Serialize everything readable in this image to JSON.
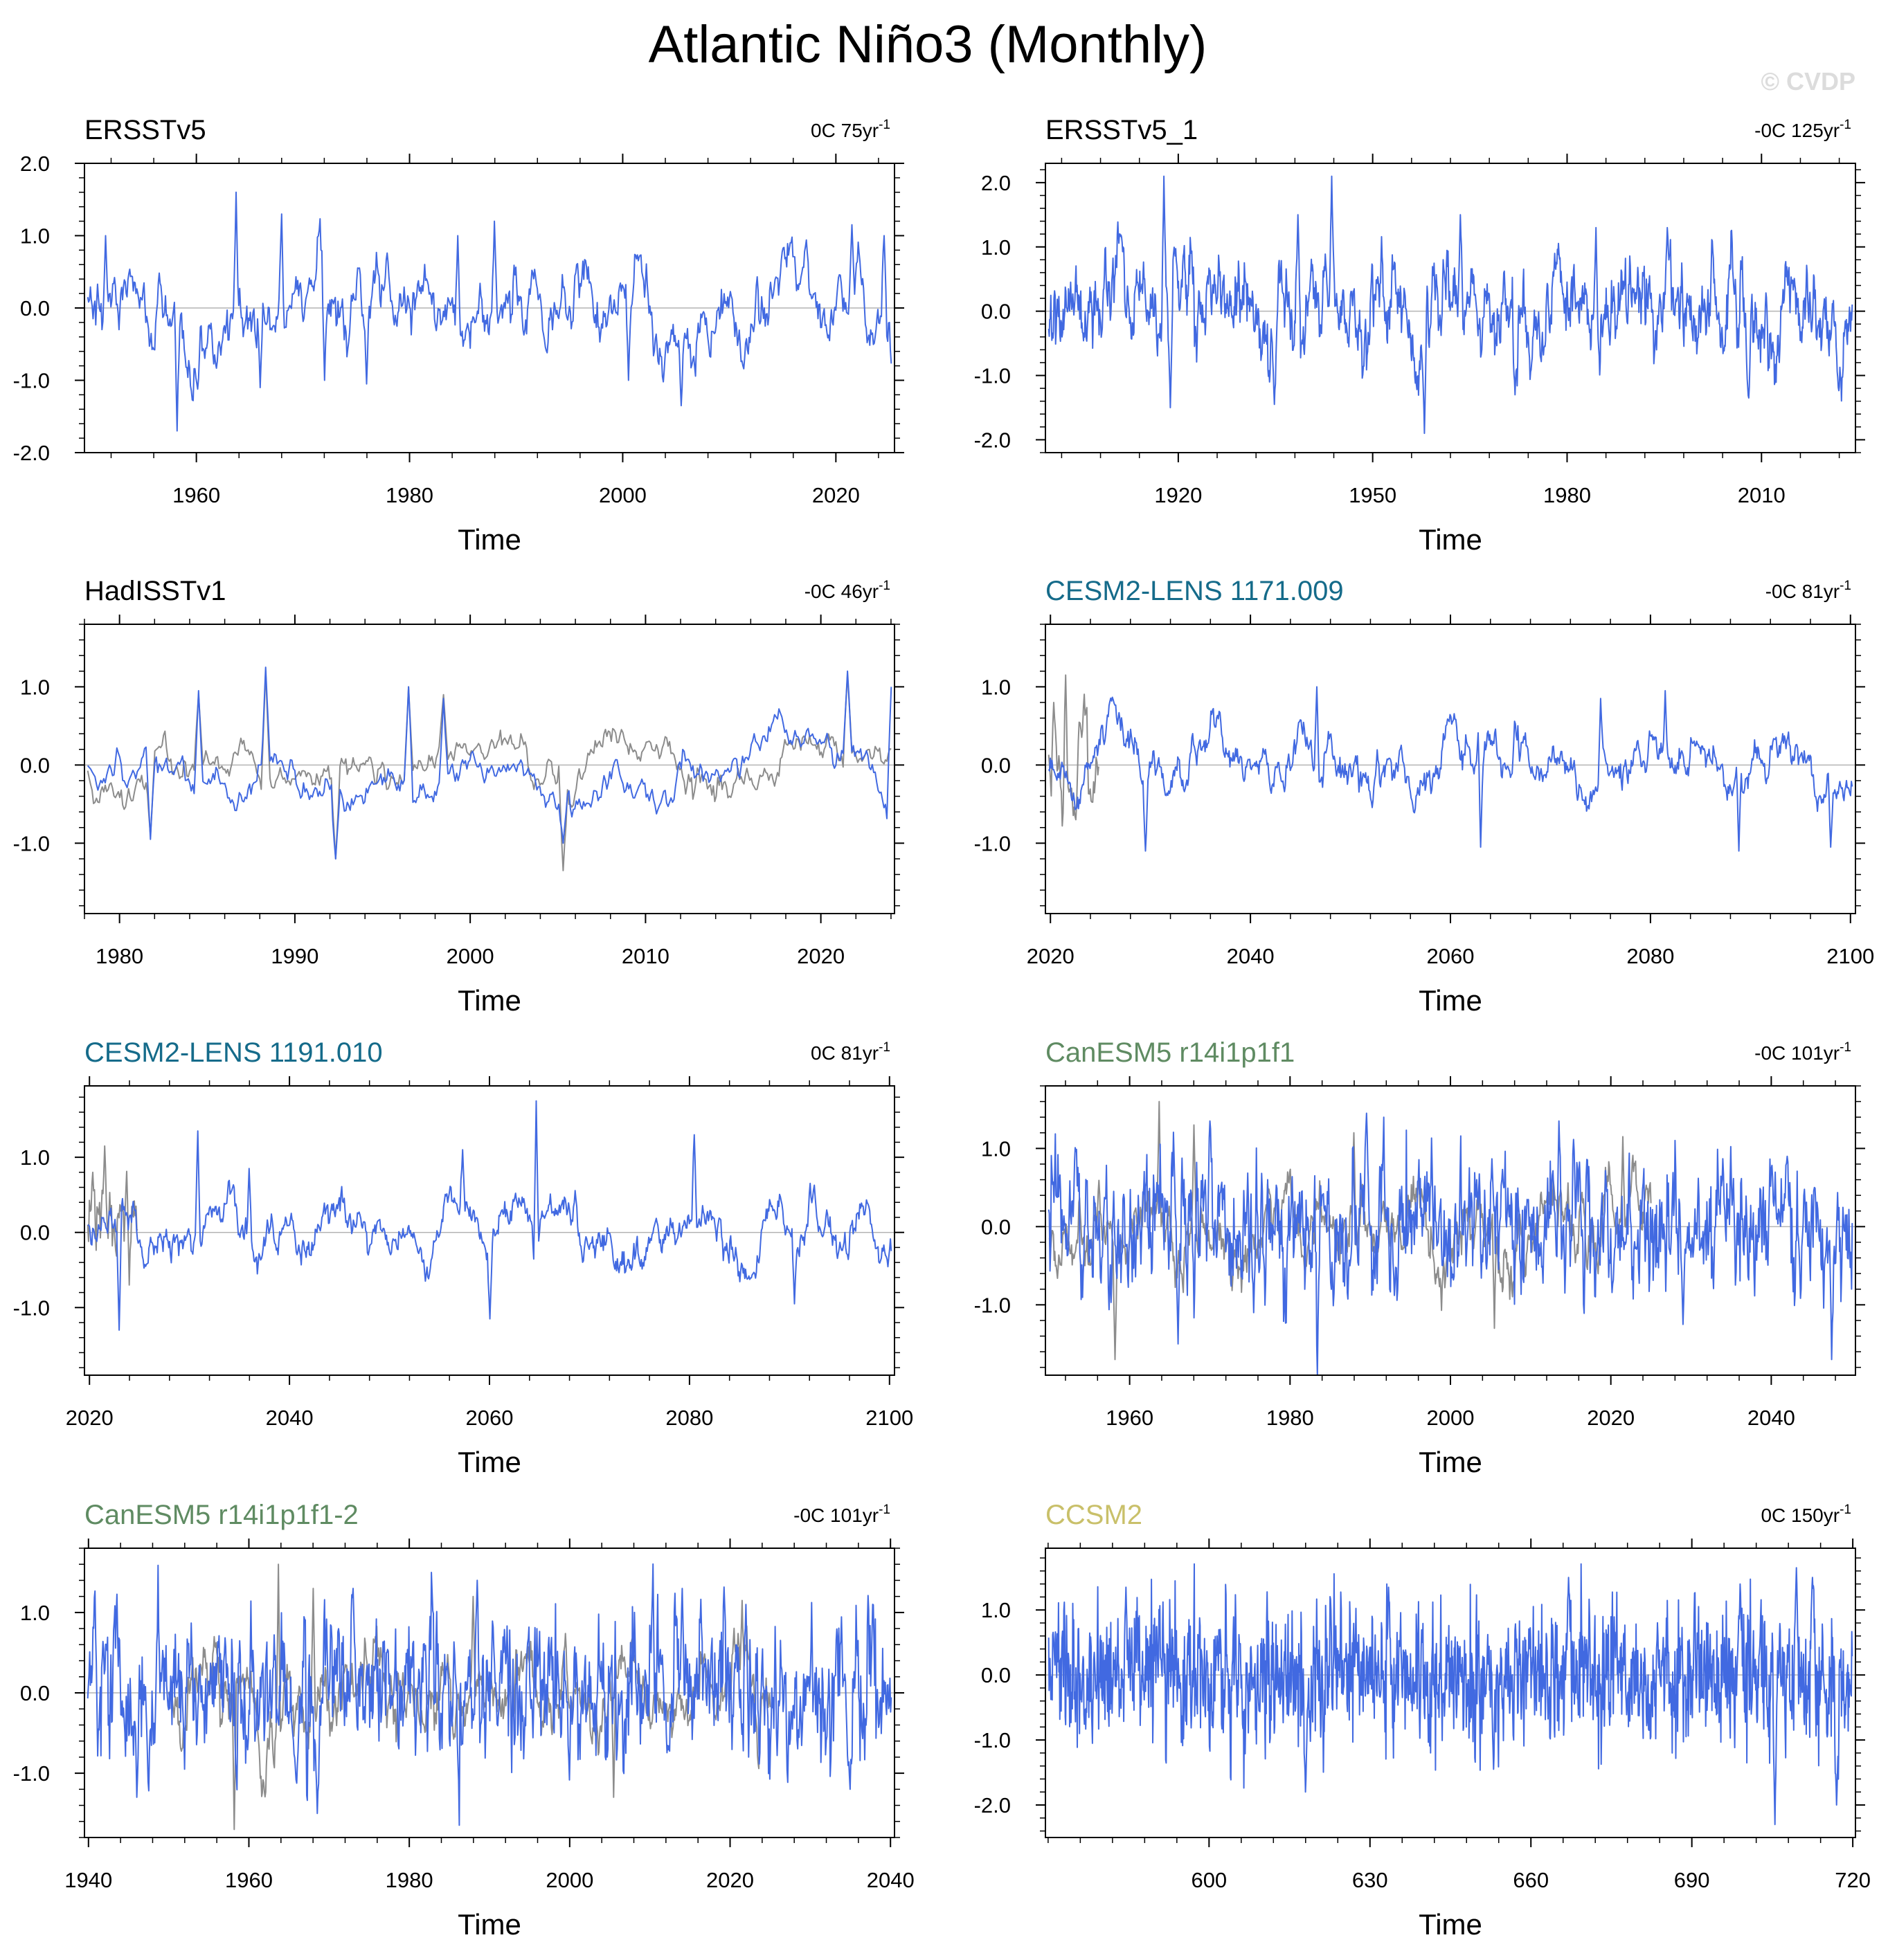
{
  "figure": {
    "title": "Atlantic Niño3 (Monthly)",
    "watermark": "© CVDP",
    "model_line_color": "#4169e1",
    "obs_line_color": "#8c8c8c",
    "zero_line_color": "#b4b4b4"
  },
  "chart_data": [
    {
      "type": "line",
      "title": "ERSSTv5",
      "title_color": "#000000",
      "trend_value": "0C 75yr",
      "trend_exp": "-1",
      "xlabel": "Time",
      "ylabel": "",
      "xlim": [
        1949.5,
        2025.5
      ],
      "ylim": [
        -2.0,
        2.0
      ],
      "xticks": [
        1960,
        1980,
        2000,
        2020
      ],
      "xticklabels": [
        "1960",
        "1980",
        "2000",
        "2020"
      ],
      "yticks": [
        -2,
        -1,
        0,
        1,
        2
      ],
      "yticklabels": [
        "-2.0",
        "-1.0",
        "0.0",
        "1.0",
        "2.0"
      ],
      "series": [
        {
          "name": "ERSSTv5",
          "color": "#4169e1",
          "n": 900,
          "amp": 0.4,
          "phi": 0.93,
          "events": [
            [
              1963.7,
              1.6
            ],
            [
              1958.2,
              -1.7
            ],
            [
              1968.0,
              1.3
            ],
            [
              1988.0,
              1.2
            ],
            [
              1984.5,
              1.0
            ],
            [
              2021.5,
              1.15
            ],
            [
              2024.5,
              1.0
            ],
            [
              1966.0,
              -1.1
            ],
            [
              1972.0,
              -1.0
            ],
            [
              2005.5,
              -1.35
            ],
            [
              2000.5,
              -1.0
            ],
            [
              1976.0,
              -1.05
            ],
            [
              1951.5,
              1.0
            ]
          ]
        }
      ]
    },
    {
      "type": "line",
      "title": "ERSSTv5_1",
      "title_color": "#000000",
      "trend_value": "-0C 125yr",
      "trend_exp": "-1",
      "xlabel": "Time",
      "ylabel": "",
      "xlim": [
        1899.5,
        2024.5
      ],
      "ylim": [
        -2.2,
        2.3
      ],
      "xticks": [
        1920,
        1950,
        1980,
        2010
      ],
      "xticklabels": [
        "1920",
        "1950",
        "1980",
        "2010"
      ],
      "yticks": [
        -2,
        -1,
        0,
        1,
        2
      ],
      "yticklabels": [
        "-2.0",
        "-1.0",
        "0.0",
        "1.0",
        "2.0"
      ],
      "series": [
        {
          "name": "ERSSTv5_1",
          "color": "#4169e1",
          "n": 1500,
          "amp": 0.4,
          "phi": 0.85,
          "events": [
            [
              1917.8,
              2.1
            ],
            [
              1943.7,
              2.1
            ],
            [
              1938.5,
              1.5
            ],
            [
              1963.5,
              1.5
            ],
            [
              1958.0,
              -1.9
            ],
            [
              1918.8,
              -1.5
            ],
            [
              1934.8,
              -1.45
            ],
            [
              1911.0,
              1.2
            ],
            [
              1984.5,
              1.3
            ],
            [
              1995.5,
              1.3
            ],
            [
              2008.0,
              -1.35
            ],
            [
              1972.0,
              -1.3
            ]
          ]
        }
      ]
    },
    {
      "type": "line",
      "title": "HadISSTv1",
      "title_color": "#000000",
      "trend_value": "-0C 46yr",
      "trend_exp": "-1",
      "xlabel": "Time",
      "ylabel": "",
      "xlim": [
        1978.0,
        2024.2
      ],
      "ylim": [
        -1.9,
        1.8
      ],
      "xticks": [
        1980,
        1990,
        2000,
        2010,
        2020
      ],
      "xticklabels": [
        "1980",
        "1990",
        "2000",
        "2010",
        "2020"
      ],
      "yticks": [
        -1,
        0,
        1
      ],
      "yticklabels": [
        "-1.0",
        "0.0",
        "1.0"
      ],
      "series": [
        {
          "name": "observations",
          "color": "#8c8c8c",
          "n": 552,
          "amp": 0.22,
          "phi": 0.95,
          "events": [
            [
              1988.3,
              1.2
            ],
            [
              1984.5,
              0.9
            ],
            [
              1996.5,
              1.0
            ],
            [
              2005.3,
              -1.35
            ],
            [
              1992.3,
              -1.2
            ],
            [
              1981.8,
              -0.9
            ],
            [
              2021.5,
              1.15
            ],
            [
              1998.5,
              0.9
            ]
          ]
        },
        {
          "name": "HadISSTv1",
          "color": "#4169e1",
          "n": 552,
          "amp": 0.22,
          "phi": 0.95,
          "events": [
            [
              1988.3,
              1.25
            ],
            [
              1984.5,
              0.95
            ],
            [
              1996.5,
              1.0
            ],
            [
              2005.3,
              -1.0
            ],
            [
              1992.3,
              -1.2
            ],
            [
              1981.8,
              -0.95
            ],
            [
              2021.5,
              1.2
            ],
            [
              2024.0,
              1.0
            ],
            [
              1998.5,
              0.85
            ]
          ]
        }
      ]
    },
    {
      "type": "line",
      "title": "CESM2-LENS 1171.009",
      "title_color": "#156b8a",
      "trend_value": "-0C 81yr",
      "trend_exp": "-1",
      "xlabel": "Time",
      "ylabel": "",
      "xlim": [
        2019.5,
        2100.5
      ],
      "ylim": [
        -1.9,
        1.8
      ],
      "xticks": [
        2020,
        2040,
        2060,
        2080,
        2100
      ],
      "xticklabels": [
        "2020",
        "2040",
        "2060",
        "2080",
        "2100"
      ],
      "yticks": [
        -1,
        0,
        1
      ],
      "yticklabels": [
        "-1.0",
        "0.0",
        "1.0"
      ],
      "series": [
        {
          "name": "observations",
          "color": "#8c8c8c",
          "n": 60,
          "amp": 0.35,
          "phi": 0.8,
          "events": [
            [
              2021.5,
              1.15
            ],
            [
              2020.3,
              0.8
            ],
            [
              2022.5,
              -0.7
            ]
          ]
        },
        {
          "name": "CESM2-LENS 1171.009",
          "color": "#4169e1",
          "n": 972,
          "amp": 0.25,
          "phi": 0.94,
          "events": [
            [
              2046.6,
              1.0
            ],
            [
              2029.5,
              -1.1
            ],
            [
              2088.8,
              -1.1
            ],
            [
              2081.5,
              0.95
            ],
            [
              2098.0,
              -1.05
            ],
            [
              2075.0,
              0.85
            ],
            [
              2063.0,
              -1.05
            ]
          ]
        }
      ]
    },
    {
      "type": "line",
      "title": "CESM2-LENS 1191.010",
      "title_color": "#156b8a",
      "trend_value": "0C 81yr",
      "trend_exp": "-1",
      "xlabel": "Time",
      "ylabel": "",
      "xlim": [
        2019.5,
        2100.5
      ],
      "ylim": [
        -1.9,
        1.95
      ],
      "xticks": [
        2020,
        2040,
        2060,
        2080,
        2100
      ],
      "xticklabels": [
        "2020",
        "2040",
        "2060",
        "2080",
        "2100"
      ],
      "yticks": [
        -1,
        0,
        1
      ],
      "yticklabels": [
        "-1.0",
        "0.0",
        "1.0"
      ],
      "series": [
        {
          "name": "observations",
          "color": "#8c8c8c",
          "n": 60,
          "amp": 0.35,
          "phi": 0.8,
          "events": [
            [
              2021.5,
              1.15
            ],
            [
              2020.3,
              0.8
            ],
            [
              2024.0,
              -0.7
            ]
          ]
        },
        {
          "name": "CESM2-LENS 1191.010",
          "color": "#4169e1",
          "n": 972,
          "amp": 0.25,
          "phi": 0.94,
          "events": [
            [
              2064.7,
              1.75
            ],
            [
              2030.8,
              1.35
            ],
            [
              2057.3,
              1.1
            ],
            [
              2080.5,
              1.3
            ],
            [
              2023.0,
              -1.3
            ],
            [
              2060.0,
              -1.15
            ],
            [
              2090.5,
              -0.95
            ],
            [
              2036.0,
              0.85
            ]
          ]
        }
      ]
    },
    {
      "type": "line",
      "title": "CanESM5 r14i1p1f1",
      "title_color": "#5f8b62",
      "trend_value": "-0C 101yr",
      "trend_exp": "-1",
      "xlabel": "Time",
      "ylabel": "",
      "xlim": [
        1949.5,
        2050.5
      ],
      "ylim": [
        -1.9,
        1.8
      ],
      "xticks": [
        1960,
        1980,
        2000,
        2020,
        2040
      ],
      "xticklabels": [
        "1960",
        "1980",
        "2000",
        "2020",
        "2040"
      ],
      "yticks": [
        -1,
        0,
        1
      ],
      "yticklabels": [
        "-1.0",
        "0.0",
        "1.0"
      ],
      "series": [
        {
          "name": "observations",
          "color": "#8c8c8c",
          "n": 900,
          "amp": 0.32,
          "phi": 0.92,
          "events": [
            [
              1963.7,
              1.6
            ],
            [
              1958.2,
              -1.7
            ],
            [
              1988.0,
              1.2
            ],
            [
              2005.5,
              -1.3
            ],
            [
              2021.5,
              1.15
            ],
            [
              1968.0,
              1.3
            ]
          ]
        },
        {
          "name": "CanESM5 r14i1p1f1",
          "color": "#4169e1",
          "n": 1212,
          "amp": 0.42,
          "phi": 0.6,
          "events": [
            [
              1989.5,
              1.45
            ],
            [
              2013.5,
              1.35
            ],
            [
              2047.5,
              -1.7
            ],
            [
              1966.0,
              -1.5
            ],
            [
              1970.0,
              1.35
            ],
            [
              2029.0,
              -1.25
            ],
            [
              1975.5,
              -1.1
            ],
            [
              2042.0,
              0.9
            ]
          ]
        }
      ]
    },
    {
      "type": "line",
      "title": "CanESM5 r14i1p1f1-2",
      "title_color": "#5f8b62",
      "trend_value": "-0C 101yr",
      "trend_exp": "-1",
      "xlabel": "Time",
      "ylabel": "",
      "xlim": [
        1939.5,
        2040.5
      ],
      "ylim": [
        -1.8,
        1.8
      ],
      "xticks": [
        1940,
        1960,
        1980,
        2000,
        2020,
        2040
      ],
      "xticklabels": [
        "1940",
        "1960",
        "1980",
        "2000",
        "2020",
        "2040"
      ],
      "yticks": [
        -1,
        0,
        1
      ],
      "yticklabels": [
        "-1.0",
        "0.0",
        "1.0"
      ],
      "series": [
        {
          "name": "observations",
          "color": "#8c8c8c",
          "n": 900,
          "amp": 0.32,
          "phi": 0.92,
          "events": [
            [
              1963.7,
              1.6
            ],
            [
              1958.2,
              -1.7
            ],
            [
              1988.0,
              1.2
            ],
            [
              2005.5,
              -1.3
            ],
            [
              2021.5,
              1.15
            ],
            [
              1968.0,
              1.3
            ]
          ]
        },
        {
          "name": "CanESM5 r14i1p1f1-2",
          "color": "#4169e1",
          "n": 1212,
          "amp": 0.42,
          "phi": 0.6,
          "events": [
            [
              1988.5,
              1.4
            ],
            [
              2014.0,
              1.3
            ],
            [
              2035.0,
              -1.2
            ],
            [
              1946.0,
              -1.3
            ],
            [
              1968.5,
              -1.5
            ],
            [
              1973.0,
              1.3
            ],
            [
              2022.0,
              1.1
            ],
            [
              1952.0,
              -0.95
            ]
          ]
        }
      ]
    },
    {
      "type": "line",
      "title": "CCSM2",
      "title_color": "#c9c06a",
      "trend_value": "0C 150yr",
      "trend_exp": "-1",
      "xlabel": "Time",
      "ylabel": "",
      "xlim": [
        569.5,
        720.5
      ],
      "ylim": [
        -2.5,
        1.95
      ],
      "xticks": [
        600,
        630,
        660,
        690,
        720
      ],
      "xticklabels": [
        "600",
        "630",
        "660",
        "690",
        "720"
      ],
      "yticks": [
        -2,
        -1,
        0,
        1
      ],
      "yticklabels": [
        "-2.0",
        "-1.0",
        "0.0",
        "1.0"
      ],
      "series": [
        {
          "name": "CCSM2",
          "color": "#4169e1",
          "n": 1800,
          "amp": 0.48,
          "phi": 0.35,
          "events": [
            [
              709.5,
              1.65
            ],
            [
              705.5,
              -2.3
            ],
            [
              717.0,
              -2.0
            ],
            [
              584.5,
              1.35
            ],
            [
              633.5,
              1.35
            ],
            [
              618.0,
              -1.8
            ],
            [
              667.0,
              1.5
            ],
            [
              712.5,
              1.5
            ],
            [
              653.0,
              -1.45
            ],
            [
              699.0,
              1.4
            ]
          ]
        }
      ]
    }
  ]
}
